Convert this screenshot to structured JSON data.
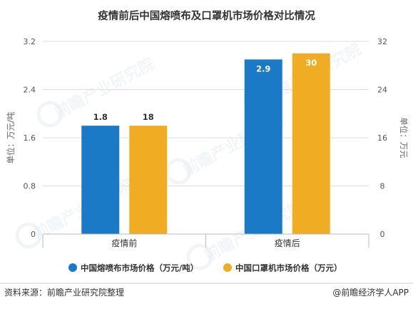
{
  "chart_data": {
    "type": "bar",
    "title": "疫情前后中国熔喷布及口罩机市场价格对比情况",
    "categories": [
      "疫情前",
      "疫情后"
    ],
    "series": [
      {
        "name": "中国熔喷布市场价格（万元/吨）",
        "values": [
          1.8,
          2.9
        ],
        "labels": [
          "1.8",
          "2.9"
        ],
        "axis": "left",
        "color": "#1A7AC6"
      },
      {
        "name": "中国口罩机市场价格（万元）",
        "values": [
          18,
          30
        ],
        "labels": [
          "18",
          "30"
        ],
        "axis": "right",
        "color": "#F0AD23"
      }
    ],
    "y_left": {
      "label": "单位：万元/吨",
      "range": [
        0,
        3.2
      ],
      "ticks": [
        "0",
        "0.8",
        "1.6",
        "2.4",
        "3.2"
      ]
    },
    "y_right": {
      "label": "单位：万元",
      "range": [
        0,
        32
      ],
      "ticks": [
        "0",
        "8",
        "16",
        "24",
        "32"
      ]
    },
    "grid": true,
    "legend_position": "bottom"
  },
  "footer": {
    "source": "资料来源：前瞻产业研究院整理",
    "credit": "@前瞻经济学人APP"
  },
  "watermark": {
    "text": "前瞻产业研究院"
  },
  "colors": {
    "grid": "#DDDDDD",
    "axis_text": "#555555",
    "label_dark": "#333333",
    "label_light": "#FFFFFF"
  }
}
